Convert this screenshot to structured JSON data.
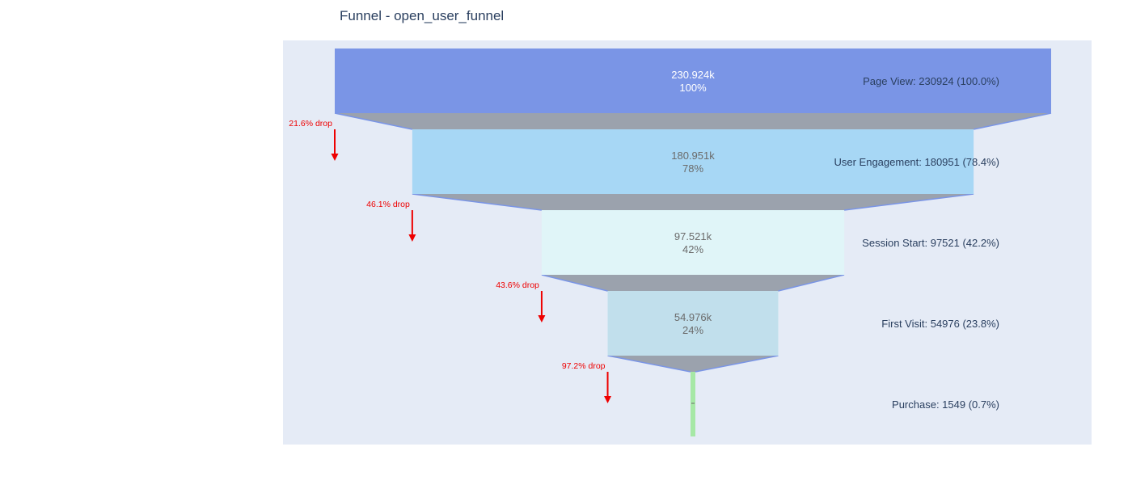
{
  "chart_data": {
    "type": "funnel",
    "title": "Funnel - open_user_funnel",
    "stages": [
      {
        "label": "Page View",
        "value": 230924,
        "value_text": "230.924k",
        "percent_text": "100%",
        "annotation": "Page View: 230924 (100.0%)",
        "color": "#7a95e6"
      },
      {
        "label": "User Engagement",
        "value": 180951,
        "value_text": "180.951k",
        "percent_text": "78%",
        "annotation": "User Engagement: 180951 (78.4%)",
        "color": "#a7d7f5"
      },
      {
        "label": "Session Start",
        "value": 97521,
        "value_text": "97.521k",
        "percent_text": "42%",
        "annotation": "Session Start: 97521 (42.2%)",
        "color": "#e0f5f8"
      },
      {
        "label": "First Visit",
        "value": 54976,
        "value_text": "54.976k",
        "percent_text": "24%",
        "annotation": "First Visit: 54976 (23.8%)",
        "color": "#c1dfec"
      },
      {
        "label": "Purchase",
        "value": 1549,
        "value_text": "1549",
        "percent_text": "1%",
        "annotation": "Purchase: 1549 (0.7%)",
        "color": "#a6e8a6"
      }
    ],
    "drops": [
      "21.6% drop",
      "46.1% drop",
      "43.6% drop",
      "97.2% drop"
    ],
    "colors": {
      "plot_bg": "#e5ebf6",
      "connector": "#9ba2ad",
      "connector_line": "#7a95e6",
      "drop": "#ee0000",
      "title": "#2a3f5f",
      "annotation": "#2a3f5f",
      "inside_text_light": "#ffffff",
      "inside_text_dark": "#6b6b6b"
    }
  }
}
